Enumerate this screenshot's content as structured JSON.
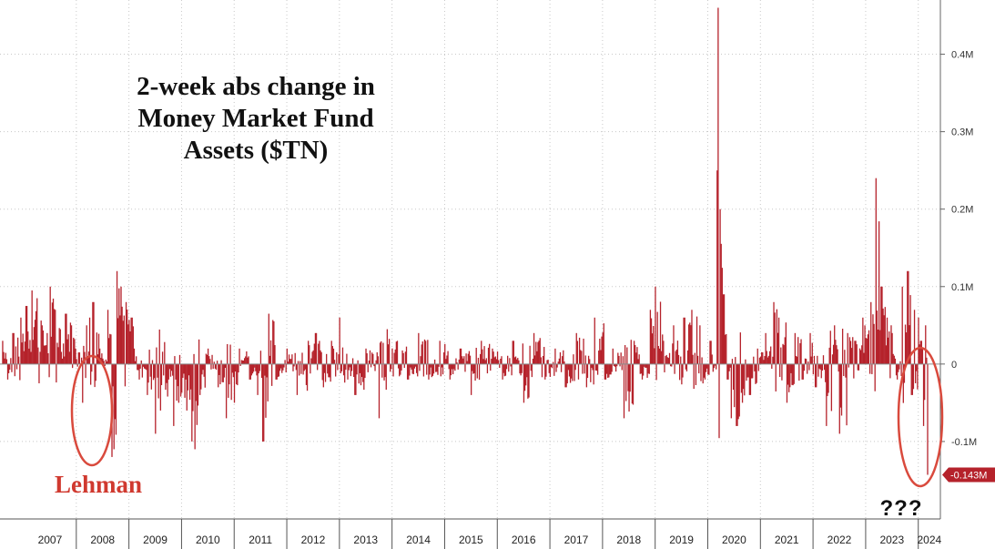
{
  "chart_data": {
    "type": "bar",
    "title_lines": [
      "2-week abs change in",
      "Money Market Fund",
      "Assets ($TN)"
    ],
    "x_tick_labels": [
      "2007",
      "2008",
      "2009",
      "2010",
      "2011",
      "2012",
      "2013",
      "2014",
      "2015",
      "2016",
      "2017",
      "2018",
      "2019",
      "2020",
      "2021",
      "2022",
      "2023",
      "2024"
    ],
    "y_tick_labels": [
      "0.4M",
      "0.3M",
      "0.2M",
      "0.1M",
      "0",
      "-0.1M"
    ],
    "y_tick_values": [
      0.4,
      0.3,
      0.2,
      0.1,
      0,
      -0.1
    ],
    "ylim": [
      -0.2,
      0.47
    ],
    "xlim": [
      2006.55,
      2024.42
    ],
    "last_value_label": "-0.143M",
    "last_value": -0.143,
    "grid": true,
    "y_axis_side": "right",
    "series": [
      {
        "color": "#b5222b",
        "anchor_points": [
          [
            2006.6,
            0.03
          ],
          [
            2006.7,
            -0.02
          ],
          [
            2006.8,
            0.04
          ],
          [
            2006.95,
            0.06
          ],
          [
            2007.05,
            0.075
          ],
          [
            2007.15,
            0.095
          ],
          [
            2007.25,
            0.085
          ],
          [
            2007.35,
            0.05
          ],
          [
            2007.45,
            0.04
          ],
          [
            2007.5,
            0.1
          ],
          [
            2007.6,
            0.07
          ],
          [
            2007.7,
            0.045
          ],
          [
            2007.8,
            0.065
          ],
          [
            2007.9,
            0.05
          ],
          [
            2007.98,
            0.02
          ],
          [
            2008.05,
            0.015
          ],
          [
            2008.12,
            -0.05
          ],
          [
            2008.2,
            0.05
          ],
          [
            2008.25,
            0.06
          ],
          [
            2008.32,
            0.08
          ],
          [
            2008.45,
            0.02
          ],
          [
            2008.6,
            0.07
          ],
          [
            2008.68,
            -0.12
          ],
          [
            2008.72,
            -0.11
          ],
          [
            2008.78,
            0.12
          ],
          [
            2008.85,
            0.1
          ],
          [
            2008.95,
            0.08
          ],
          [
            2009.05,
            0.06
          ],
          [
            2009.1,
            0.02
          ],
          [
            2009.2,
            -0.02
          ],
          [
            2009.35,
            -0.04
          ],
          [
            2009.5,
            -0.09
          ],
          [
            2009.6,
            -0.06
          ],
          [
            2009.75,
            -0.02
          ],
          [
            2009.85,
            -0.08
          ],
          [
            2009.95,
            -0.05
          ],
          [
            2010.1,
            -0.06
          ],
          [
            2010.2,
            -0.1
          ],
          [
            2010.25,
            -0.11
          ],
          [
            2010.35,
            -0.04
          ],
          [
            2010.5,
            0.02
          ],
          [
            2010.7,
            -0.03
          ],
          [
            2010.85,
            -0.07
          ],
          [
            2011.0,
            -0.05
          ],
          [
            2011.1,
            0.02
          ],
          [
            2011.3,
            -0.02
          ],
          [
            2011.45,
            -0.04
          ],
          [
            2011.55,
            -0.1
          ],
          [
            2011.65,
            0.065
          ],
          [
            2011.8,
            -0.02
          ],
          [
            2012.0,
            0.02
          ],
          [
            2012.2,
            -0.04
          ],
          [
            2012.4,
            0.03
          ],
          [
            2012.55,
            0.04
          ],
          [
            2012.7,
            -0.03
          ],
          [
            2012.85,
            0.03
          ],
          [
            2013.0,
            0.06
          ],
          [
            2013.15,
            -0.02
          ],
          [
            2013.3,
            -0.04
          ],
          [
            2013.5,
            0.02
          ],
          [
            2013.75,
            -0.07
          ],
          [
            2013.9,
            0.045
          ],
          [
            2014.1,
            0.03
          ],
          [
            2014.3,
            -0.02
          ],
          [
            2014.5,
            0.04
          ],
          [
            2014.7,
            -0.02
          ],
          [
            2014.9,
            0.03
          ],
          [
            2015.1,
            -0.02
          ],
          [
            2015.3,
            0.02
          ],
          [
            2015.5,
            -0.04
          ],
          [
            2015.7,
            0.03
          ],
          [
            2015.9,
            0.02
          ],
          [
            2016.1,
            -0.02
          ],
          [
            2016.3,
            0.03
          ],
          [
            2016.5,
            -0.05
          ],
          [
            2016.7,
            0.04
          ],
          [
            2016.9,
            -0.02
          ],
          [
            2017.1,
            0.02
          ],
          [
            2017.3,
            -0.03
          ],
          [
            2017.5,
            0.04
          ],
          [
            2017.7,
            -0.03
          ],
          [
            2017.85,
            0.06
          ],
          [
            2018.05,
            -0.02
          ],
          [
            2018.2,
            0.02
          ],
          [
            2018.4,
            -0.07
          ],
          [
            2018.6,
            0.03
          ],
          [
            2018.75,
            -0.02
          ],
          [
            2018.9,
            0.07
          ],
          [
            2019.0,
            0.1
          ],
          [
            2019.15,
            0.03
          ],
          [
            2019.35,
            0.05
          ],
          [
            2019.55,
            0.06
          ],
          [
            2019.7,
            0.07
          ],
          [
            2019.85,
            0.05
          ],
          [
            2019.95,
            -0.02
          ],
          [
            2020.05,
            0.03
          ],
          [
            2020.1,
            -0.01
          ],
          [
            2020.17,
            0.25
          ],
          [
            2020.2,
            0.46
          ],
          [
            2020.24,
            0.2
          ],
          [
            2020.3,
            0.09
          ],
          [
            2020.38,
            -0.02
          ],
          [
            2020.45,
            -0.07
          ],
          [
            2020.55,
            -0.08
          ],
          [
            2020.65,
            -0.05
          ],
          [
            2020.8,
            -0.04
          ],
          [
            2020.95,
            0.02
          ],
          [
            2021.1,
            0.04
          ],
          [
            2021.25,
            0.08
          ],
          [
            2021.35,
            0.06
          ],
          [
            2021.5,
            -0.05
          ],
          [
            2021.65,
            0.04
          ],
          [
            2021.8,
            -0.02
          ],
          [
            2021.95,
            0.04
          ],
          [
            2022.05,
            -0.03
          ],
          [
            2022.25,
            -0.08
          ],
          [
            2022.4,
            0.05
          ],
          [
            2022.5,
            -0.09
          ],
          [
            2022.65,
            0.04
          ],
          [
            2022.8,
            0.03
          ],
          [
            2022.95,
            0.06
          ],
          [
            2023.1,
            0.08
          ],
          [
            2023.2,
            0.24
          ],
          [
            2023.3,
            0.1
          ],
          [
            2023.4,
            0.06
          ],
          [
            2023.5,
            0.04
          ],
          [
            2023.6,
            -0.02
          ],
          [
            2023.7,
            0.1
          ],
          [
            2023.8,
            0.12
          ],
          [
            2023.88,
            -0.04
          ],
          [
            2023.92,
            0.07
          ],
          [
            2024.0,
            0.06
          ],
          [
            2024.05,
            0.03
          ],
          [
            2024.1,
            -0.08
          ],
          [
            2024.14,
            0.05
          ],
          [
            2024.18,
            -0.143
          ]
        ]
      }
    ]
  },
  "annotations": {
    "lehman_label": "Lehman",
    "question_label": "???",
    "circle_color": "#d94a3d"
  },
  "colors": {
    "bar": "#b5222b",
    "grid": "#c8c8c8",
    "last_label_bg": "#b5222b"
  }
}
